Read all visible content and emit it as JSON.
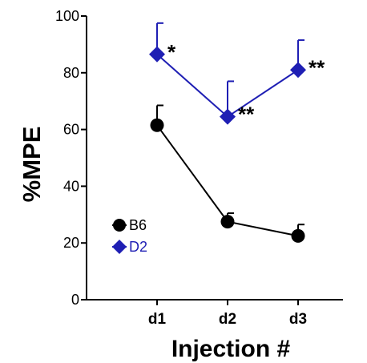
{
  "chart_data": {
    "type": "line",
    "xlabel": "Injection #",
    "ylabel": "%MPE",
    "categories": [
      "d1",
      "d2",
      "d3"
    ],
    "ylim": [
      0,
      100
    ],
    "yticks": [
      0,
      20,
      40,
      60,
      80,
      100
    ],
    "grid": false,
    "legend_position": "bottom-left",
    "series": [
      {
        "name": "B6",
        "color": "#000000",
        "marker": "circle",
        "values": [
          61.5,
          27.5,
          22.5
        ],
        "error_upper": [
          68.5,
          30.5,
          26.5
        ]
      },
      {
        "name": "D2",
        "color": "#1f1fb4",
        "marker": "diamond",
        "values": [
          86.5,
          64.5,
          81
        ],
        "error_upper": [
          97.5,
          77,
          91.5
        ],
        "significance": [
          "*",
          "**",
          "**"
        ]
      }
    ]
  }
}
